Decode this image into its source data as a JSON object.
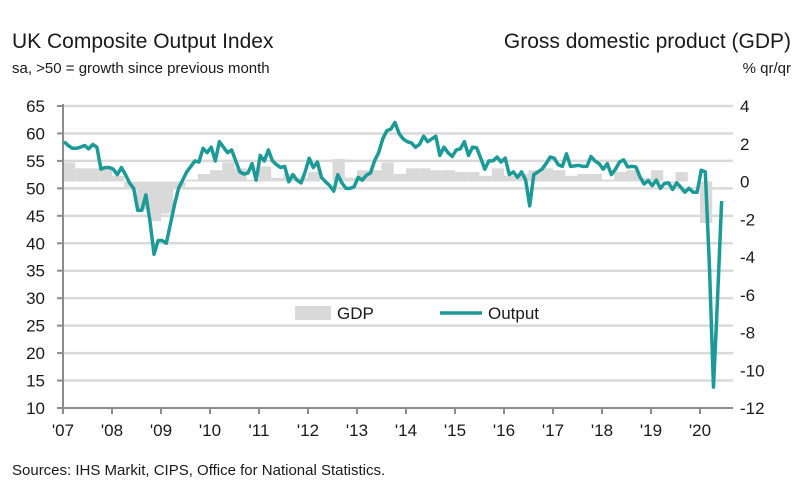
{
  "chart_data": {
    "type": "bar+line",
    "title_left": "UK Composite Output Index",
    "subtitle_left": "sa, >50 = growth since previous month",
    "title_right": "Gross domestic product (GDP)",
    "subtitle_right": "% qr/qr",
    "source": "Sources: IHS Markit, CIPS, Office for National Statistics.",
    "x_ticks": [
      "'07",
      "'08",
      "'09",
      "'10",
      "'11",
      "'12",
      "'13",
      "'14",
      "'15",
      "'16",
      "'17",
      "'18",
      "'19",
      "'20"
    ],
    "y_left": {
      "ticks": [
        "65",
        "60",
        "55",
        "50",
        "45",
        "40",
        "35",
        "30",
        "25",
        "20",
        "15",
        "10"
      ],
      "range": [
        10,
        65
      ]
    },
    "y_right": {
      "ticks": [
        "4",
        "2",
        "0",
        "-2",
        "-4",
        "-6",
        "-8",
        "-10",
        "-12"
      ],
      "range": [
        -12,
        4
      ]
    },
    "grid": true,
    "legend": {
      "position": "center",
      "items": [
        "GDP",
        "Output"
      ]
    },
    "colors": {
      "output": "#1b9a98",
      "gdp": "#d9d9d9",
      "grid": "#d9d9d9",
      "axis": "#8c8c8c"
    },
    "series": [
      {
        "name": "GDP",
        "axis": "right",
        "frequency": "quarterly",
        "values_by_year": {
          "2007": [
            1.0,
            0.7,
            0.7,
            0.7
          ],
          "2008": [
            0.3,
            -0.4,
            -1.5,
            -2.1
          ],
          "2009": [
            -1.7,
            -0.3,
            0.1,
            0.4
          ],
          "2010": [
            0.6,
            1.0,
            0.7,
            0.1
          ],
          "2011": [
            0.8,
            0.2,
            0.4,
            0.2
          ],
          "2012": [
            0.5,
            0.0,
            1.2,
            0.2
          ],
          "2013": [
            0.6,
            0.6,
            1.0,
            0.4
          ],
          "2014": [
            0.7,
            0.7,
            0.6,
            0.6
          ],
          "2015": [
            0.5,
            0.5,
            0.3,
            0.7
          ],
          "2016": [
            0.3,
            0.4,
            0.6,
            0.7
          ],
          "2017": [
            0.6,
            0.3,
            0.4,
            0.4
          ],
          "2018": [
            0.1,
            0.5,
            0.6,
            0.2
          ],
          "2019": [
            0.6,
            -0.1,
            0.5,
            0.0
          ],
          "2020": [
            -2.2
          ]
        }
      },
      {
        "name": "Output",
        "axis": "left",
        "frequency": "monthly",
        "values_by_year": {
          "2007": [
            58.5,
            57.8,
            57.3,
            57.3,
            57.5,
            57.8,
            57.2,
            58.0,
            57.5,
            53.5,
            53.8,
            53.8
          ],
          "2008": [
            53.5,
            52.5,
            53.8,
            52.5,
            51.0,
            50.0,
            46.0,
            46.0,
            48.8,
            44.0,
            38.0,
            40.5
          ],
          "2009": [
            40.5,
            40.0,
            43.5,
            47.0,
            50.0,
            51.5,
            53.0,
            54.0,
            55.0,
            54.8,
            57.3,
            56.5
          ],
          "2010": [
            57.5,
            55.0,
            58.5,
            57.5,
            56.5,
            57.0,
            55.0,
            53.0,
            52.6,
            52.8,
            54.5,
            51.5
          ],
          "2011": [
            56.0,
            55.0,
            57.0,
            55.0,
            54.3,
            53.8,
            54.0,
            51.2,
            52.5,
            51.5,
            51.0,
            53.0
          ],
          "2012": [
            55.5,
            53.8,
            54.8,
            52.0,
            51.2,
            50.5,
            49.5,
            52.5,
            51.0,
            50.0,
            50.0,
            50.3
          ],
          "2013": [
            52.0,
            51.5,
            52.4,
            52.8,
            55.0,
            56.5,
            59.0,
            60.5,
            60.8,
            62.0,
            60.0,
            59.0
          ],
          "2014": [
            58.5,
            58.3,
            57.5,
            58.0,
            59.5,
            58.5,
            59.0,
            59.5,
            56.0,
            57.5,
            56.5,
            55.8
          ],
          "2015": [
            57.0,
            57.2,
            58.5,
            56.0,
            57.5,
            57.4,
            55.5,
            53.5,
            55.0,
            55.0,
            55.7,
            54.8
          ],
          "2016": [
            55.5,
            52.5,
            53.0,
            52.0,
            53.0,
            51.5,
            46.8,
            52.5,
            53.0,
            53.5,
            54.5,
            55.7
          ],
          "2017": [
            55.5,
            54.3,
            54.0,
            56.3,
            54.0,
            54.1,
            54.2,
            54.0,
            54.0,
            55.8,
            55.0,
            54.5
          ],
          "2018": [
            53.5,
            54.5,
            52.5,
            53.5,
            54.8,
            55.2,
            53.9,
            54.0,
            53.9,
            52.1,
            50.8,
            51.4
          ],
          "2019": [
            50.5,
            51.5,
            50.0,
            50.9,
            51.0,
            49.8,
            51.0,
            50.2,
            49.3,
            50.0,
            49.3,
            49.3
          ],
          "2020": [
            53.3,
            53.0,
            36.0,
            13.8,
            30.0,
            47.7
          ]
        }
      }
    ]
  }
}
